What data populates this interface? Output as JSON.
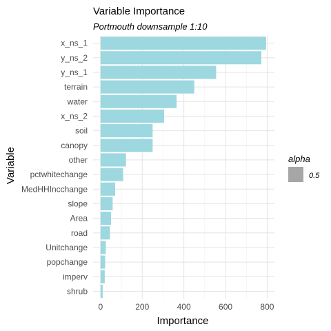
{
  "chart_data": {
    "type": "bar",
    "orientation": "horizontal",
    "title": "Variable Importance",
    "subtitle": "Portmouth downsample 1:10",
    "xlabel": "Importance",
    "ylabel": "Variable",
    "categories": [
      "x_ns_1",
      "y_ns_2",
      "y_ns_1",
      "terrain",
      "water",
      "x_ns_2",
      "soil",
      "canopy",
      "other",
      "pctwhitechange",
      "MedHHIncchange",
      "slope",
      "Area",
      "road",
      "Unitchange",
      "popchange",
      "imperv",
      "shrub"
    ],
    "values": [
      795,
      772,
      555,
      450,
      365,
      305,
      250,
      250,
      122,
      108,
      70,
      58,
      50,
      45,
      25,
      22,
      20,
      10
    ],
    "xticks": [
      0,
      200,
      400,
      600,
      800
    ],
    "xtick_labels": [
      "0",
      "200",
      "400",
      "600",
      "800"
    ],
    "xlim": [
      -36,
      835
    ],
    "grid": true,
    "bar_color": "#9dd7e0",
    "legend": {
      "title": "alpha",
      "position": "right",
      "items": [
        {
          "label": "0.5",
          "color": "#a6a6a6"
        }
      ]
    }
  }
}
